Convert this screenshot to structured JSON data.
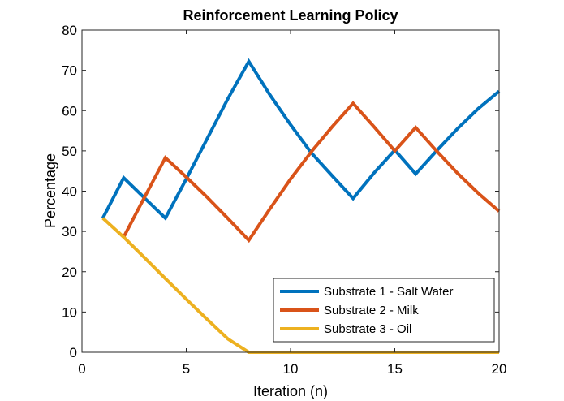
{
  "chart_data": {
    "type": "line",
    "title": "Reinforcement Learning Policy",
    "xlabel": "Iteration (n)",
    "ylabel": "Percentage",
    "xlim": [
      0,
      20
    ],
    "ylim": [
      0,
      80
    ],
    "xticks": [
      0,
      5,
      10,
      15,
      20
    ],
    "yticks": [
      0,
      10,
      20,
      30,
      40,
      50,
      60,
      70,
      80
    ],
    "grid": false,
    "legend_position": "bottom-right",
    "series": [
      {
        "name": "Substrate 1 - Salt Water",
        "color": "#0072BD",
        "x": [
          1,
          2,
          3,
          4,
          5,
          6,
          7,
          8,
          9,
          10,
          11,
          12,
          13,
          14,
          15,
          16,
          17,
          18,
          19,
          20
        ],
        "y": [
          33.3,
          43.3,
          38.3,
          33.3,
          43,
          53,
          63,
          72.2,
          64,
          56.5,
          49.5,
          43.8,
          38.2,
          44.5,
          50.2,
          44.3,
          50,
          55.5,
          60.5,
          64.8
        ]
      },
      {
        "name": "Substrate 2 - Milk",
        "color": "#D95319",
        "x": [
          2,
          3,
          4,
          5,
          6,
          7,
          8,
          9,
          10,
          11,
          12,
          13,
          14,
          15,
          16,
          17,
          18,
          19,
          20
        ],
        "y": [
          28.6,
          38.5,
          48.3,
          43.5,
          38.5,
          33.2,
          27.8,
          35.5,
          43,
          49.8,
          56,
          61.8,
          56,
          50,
          55.8,
          50,
          44.5,
          39.5,
          35
        ]
      },
      {
        "name": "Substrate 3 - Oil",
        "color": "#EDB120",
        "x": [
          1,
          2,
          3,
          4,
          5,
          6,
          7,
          8,
          9,
          10,
          11,
          12,
          13,
          14,
          15,
          16,
          17,
          18,
          19,
          20
        ],
        "y": [
          33.3,
          28.6,
          23.5,
          18.3,
          13.2,
          8.2,
          3.3,
          0,
          0,
          0,
          0,
          0,
          0,
          0,
          0,
          0,
          0,
          0,
          0,
          0
        ]
      }
    ]
  }
}
